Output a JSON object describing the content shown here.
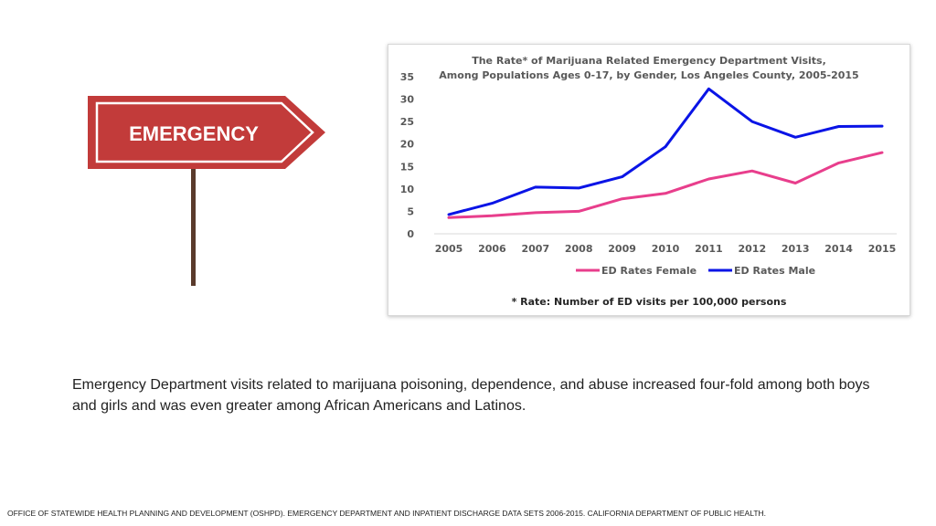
{
  "sign": {
    "label": "EMERGENCY",
    "colors": {
      "board": "#c23b3a",
      "border": "#ffffff",
      "post": "#5a3b2c"
    }
  },
  "chart_data": {
    "type": "line",
    "title": "The Rate* of Marijuana Related Emergency Department Visits,",
    "subtitle": "Among Populations Ages 0-17, by Gender, Los Angeles County,  2005-2015",
    "categories": [
      "2005",
      "2006",
      "2007",
      "2008",
      "2009",
      "2010",
      "2011",
      "2012",
      "2013",
      "2014",
      "2015"
    ],
    "y_ticks": [
      "0",
      "5",
      "10",
      "15",
      "20",
      "25",
      "30",
      "35"
    ],
    "ylim": [
      0,
      35
    ],
    "series": [
      {
        "name": "ED Rates Female",
        "color": "#e83e8c",
        "values": [
          3.6,
          4.0,
          4.7,
          5.0,
          7.8,
          9.0,
          12.2,
          14.0,
          11.3,
          15.8,
          18.1
        ]
      },
      {
        "name": "ED Rates Male",
        "color": "#0a14e6",
        "values": [
          4.3,
          6.8,
          10.4,
          10.2,
          12.7,
          19.4,
          32.3,
          25.0,
          21.5,
          23.9,
          24.0
        ]
      }
    ],
    "legend_position": "bottom",
    "grid": false,
    "footnote": "* Rate: Number of ED visits per 100,000 persons"
  },
  "caption": "Emergency Department visits related to marijuana poisoning, dependence, and abuse increased four-fold among both boys and girls and was even greater among African Americans and Latinos.",
  "source": "OFFICE OF STATEWIDE HEALTH PLANNING AND DEVELOPMENT (OSHPD). EMERGENCY DEPARTMENT AND INPATIENT DISCHARGE DATA SETS 2006-2015. CALIFORNIA DEPARTMENT OF PUBLIC HEALTH."
}
